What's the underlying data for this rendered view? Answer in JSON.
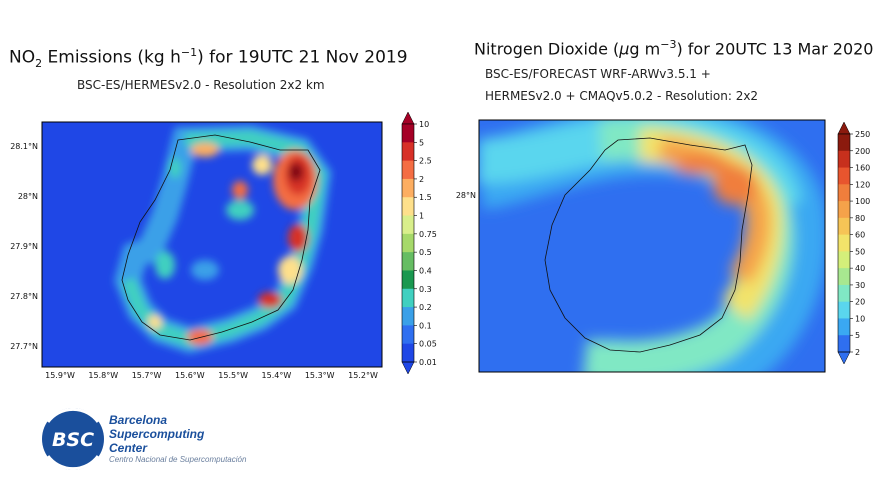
{
  "chart_data": [
    {
      "type": "heatmap",
      "title_pre": "NO",
      "title_sub": "2",
      "title_mid": " Emissions (kg h",
      "title_sup": "−1",
      "title_post": ") for 19UTC 21 Nov 2019",
      "subtitle": "BSC-ES/HERMESv2.0 - Resolution 2x2 km",
      "x_ticks": [
        "15.9°W",
        "15.8°W",
        "15.7°W",
        "15.6°W",
        "15.5°W",
        "15.4°W",
        "15.3°W",
        "15.2°W"
      ],
      "y_ticks": [
        "28.1°N",
        "28°N",
        "27.9°N",
        "27.8°N",
        "27.7°N"
      ],
      "colorbar_ticks": [
        "10",
        "5",
        "2.5",
        "2",
        "1.5",
        "1",
        "0.75",
        "0.5",
        "0.4",
        "0.3",
        "0.2",
        "0.1",
        "0.05",
        "0.01"
      ],
      "colorbar_colors": [
        "#a50026",
        "#d73027",
        "#f46d43",
        "#fdae61",
        "#fee08b",
        "#d9ef8b",
        "#a6d96a",
        "#66bd63",
        "#1a9850",
        "#40d0c0",
        "#3aa0e8",
        "#2f6ff0",
        "#1f47e6"
      ],
      "background_color": "#1f47e6"
    },
    {
      "type": "heatmap",
      "title_pre": "Nitrogen Dioxide (",
      "title_mu": "μ",
      "title_mid": "g m",
      "title_sup": "−3",
      "title_post": ") for 20UTC 13 Mar 2020",
      "subtitle_line1": "BSC-ES/FORECAST  WRF-ARWv3.5.1 +",
      "subtitle_line2": "HERMESv2.0 + CMAQv5.0.2 - Resolution: 2x2",
      "y_ticks": [
        "28°N"
      ],
      "colorbar_ticks": [
        "250",
        "200",
        "160",
        "120",
        "100",
        "80",
        "60",
        "50",
        "40",
        "30",
        "20",
        "10",
        "5",
        "2"
      ],
      "colorbar_colors": [
        "#8b1a0e",
        "#c7301d",
        "#e8552e",
        "#f07e3c",
        "#f5a24a",
        "#f6c456",
        "#f2e36a",
        "#d4ef7a",
        "#a8e890",
        "#80e8c4",
        "#5ad6ee",
        "#3aa8f2",
        "#2f6ff0"
      ],
      "background_color": "#2f6ff0"
    }
  ],
  "logo": {
    "badge": "BSC",
    "line1": "Barcelona",
    "line2": "Supercomputing",
    "line3": "Center",
    "line4": "Centro Nacional de Supercomputación"
  }
}
